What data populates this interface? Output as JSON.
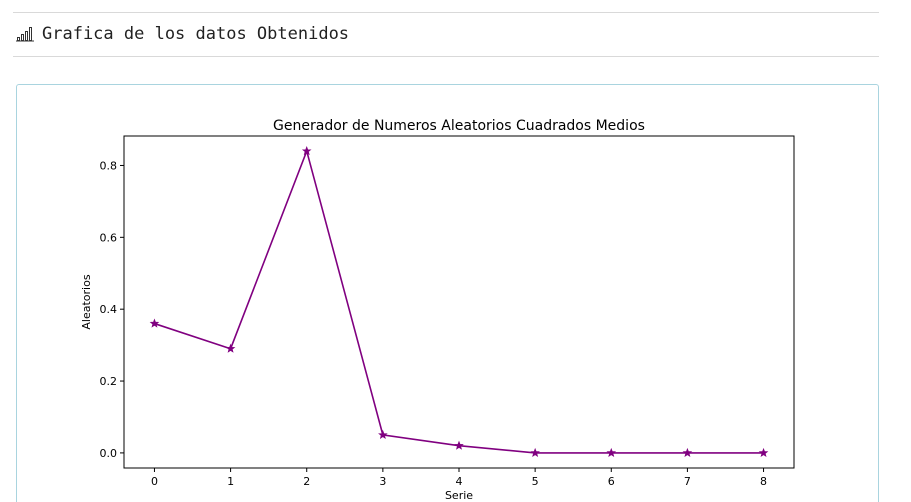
{
  "header": {
    "title": "Grafica de los datos Obtenidos",
    "icon": "bar-chart-icon"
  },
  "chart_data": {
    "type": "line",
    "title": "Generador de Numeros Aleatorios Cuadrados Medios",
    "xlabel": "Serie",
    "ylabel": "Aleatorios",
    "x": [
      0,
      1,
      2,
      3,
      4,
      5,
      6,
      7,
      8
    ],
    "series": [
      {
        "values": [
          0.36,
          0.29,
          0.84,
          0.05,
          0.02,
          0.0,
          0.0,
          0.0,
          0.0
        ],
        "color": "#800080",
        "marker": "star"
      }
    ],
    "xticks": [
      "0",
      "1",
      "2",
      "3",
      "4",
      "5",
      "6",
      "7",
      "8"
    ],
    "yticks": [
      "0.0",
      "0.2",
      "0.4",
      "0.6",
      "0.8"
    ],
    "ylim": [
      -0.042,
      0.882
    ],
    "xlim": [
      -0.4,
      8.4
    ],
    "grid": false,
    "legend": "none"
  }
}
